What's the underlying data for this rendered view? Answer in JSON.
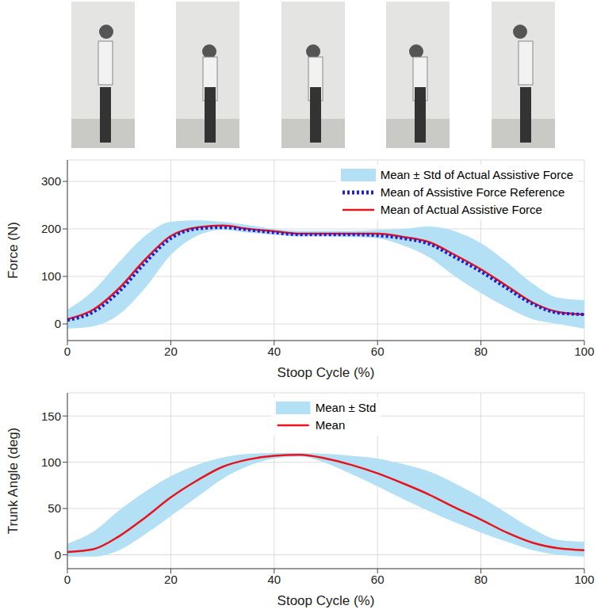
{
  "chart_data": [
    {
      "type": "line",
      "x": [
        0,
        5,
        10,
        15,
        20,
        25,
        30,
        35,
        40,
        45,
        50,
        55,
        60,
        65,
        70,
        75,
        80,
        85,
        90,
        95,
        100
      ],
      "xlabel": "Stoop Cycle (%)",
      "ylabel": "Force (N)",
      "xlim": [
        0,
        100
      ],
      "xticks": [
        0,
        20,
        40,
        60,
        80,
        100
      ],
      "ylim": [
        -35,
        345
      ],
      "yticks": [
        0,
        100,
        200,
        300
      ],
      "grid": true,
      "legend": "upper right",
      "series": [
        {
          "name": "Mean ± Std of Actual Assistive Force",
          "type": "area",
          "color": "#b3e0f5",
          "lower": [
            -10,
            -5,
            20,
            75,
            145,
            185,
            198,
            192,
            188,
            184,
            184,
            183,
            180,
            165,
            140,
            100,
            65,
            35,
            10,
            0,
            -10
          ],
          "upper": [
            30,
            70,
            130,
            185,
            215,
            218,
            215,
            208,
            200,
            196,
            196,
            196,
            198,
            200,
            205,
            195,
            170,
            130,
            85,
            55,
            50
          ]
        },
        {
          "name": "Mean of Assistive Force Reference",
          "type": "line",
          "color": "#1f1fd6",
          "line_style": "dotted",
          "values": [
            8,
            25,
            68,
            128,
            180,
            200,
            203,
            198,
            192,
            188,
            188,
            188,
            186,
            180,
            168,
            140,
            110,
            75,
            42,
            23,
            20
          ]
        },
        {
          "name": "Mean of Actual Assistive Force",
          "type": "line",
          "color": "#e8141c",
          "line_style": "solid",
          "values": [
            10,
            30,
            75,
            135,
            185,
            203,
            207,
            200,
            195,
            190,
            190,
            190,
            190,
            183,
            172,
            145,
            115,
            80,
            45,
            25,
            20
          ]
        }
      ]
    },
    {
      "type": "line",
      "x": [
        0,
        5,
        10,
        15,
        20,
        25,
        30,
        35,
        40,
        45,
        50,
        55,
        60,
        65,
        70,
        75,
        80,
        85,
        90,
        95,
        100
      ],
      "xlabel": "Stoop Cycle (%)",
      "ylabel": "Trunk Angle (deg)",
      "xlim": [
        0,
        100
      ],
      "xticks": [
        0,
        20,
        40,
        60,
        80,
        100
      ],
      "ylim": [
        -15,
        175
      ],
      "yticks": [
        0,
        50,
        100,
        150
      ],
      "grid": true,
      "legend": "upper center",
      "series": [
        {
          "name": "Mean ± Std",
          "type": "area",
          "color": "#b3e0f5",
          "lower": [
            -2,
            -2,
            5,
            22,
            42,
            62,
            82,
            96,
            104,
            106,
            99,
            87,
            74,
            60,
            47,
            35,
            24,
            14,
            5,
            0,
            -2
          ],
          "upper": [
            12,
            25,
            48,
            68,
            85,
            97,
            105,
            109,
            110,
            110,
            109,
            107,
            104,
            98,
            90,
            77,
            62,
            45,
            28,
            16,
            14
          ]
        },
        {
          "name": "Mean",
          "type": "line",
          "color": "#e8141c",
          "line_style": "solid",
          "values": [
            3,
            6,
            20,
            40,
            62,
            80,
            95,
            103,
            107,
            108,
            104,
            97,
            88,
            77,
            65,
            51,
            38,
            24,
            13,
            7,
            5
          ]
        }
      ]
    }
  ]
}
